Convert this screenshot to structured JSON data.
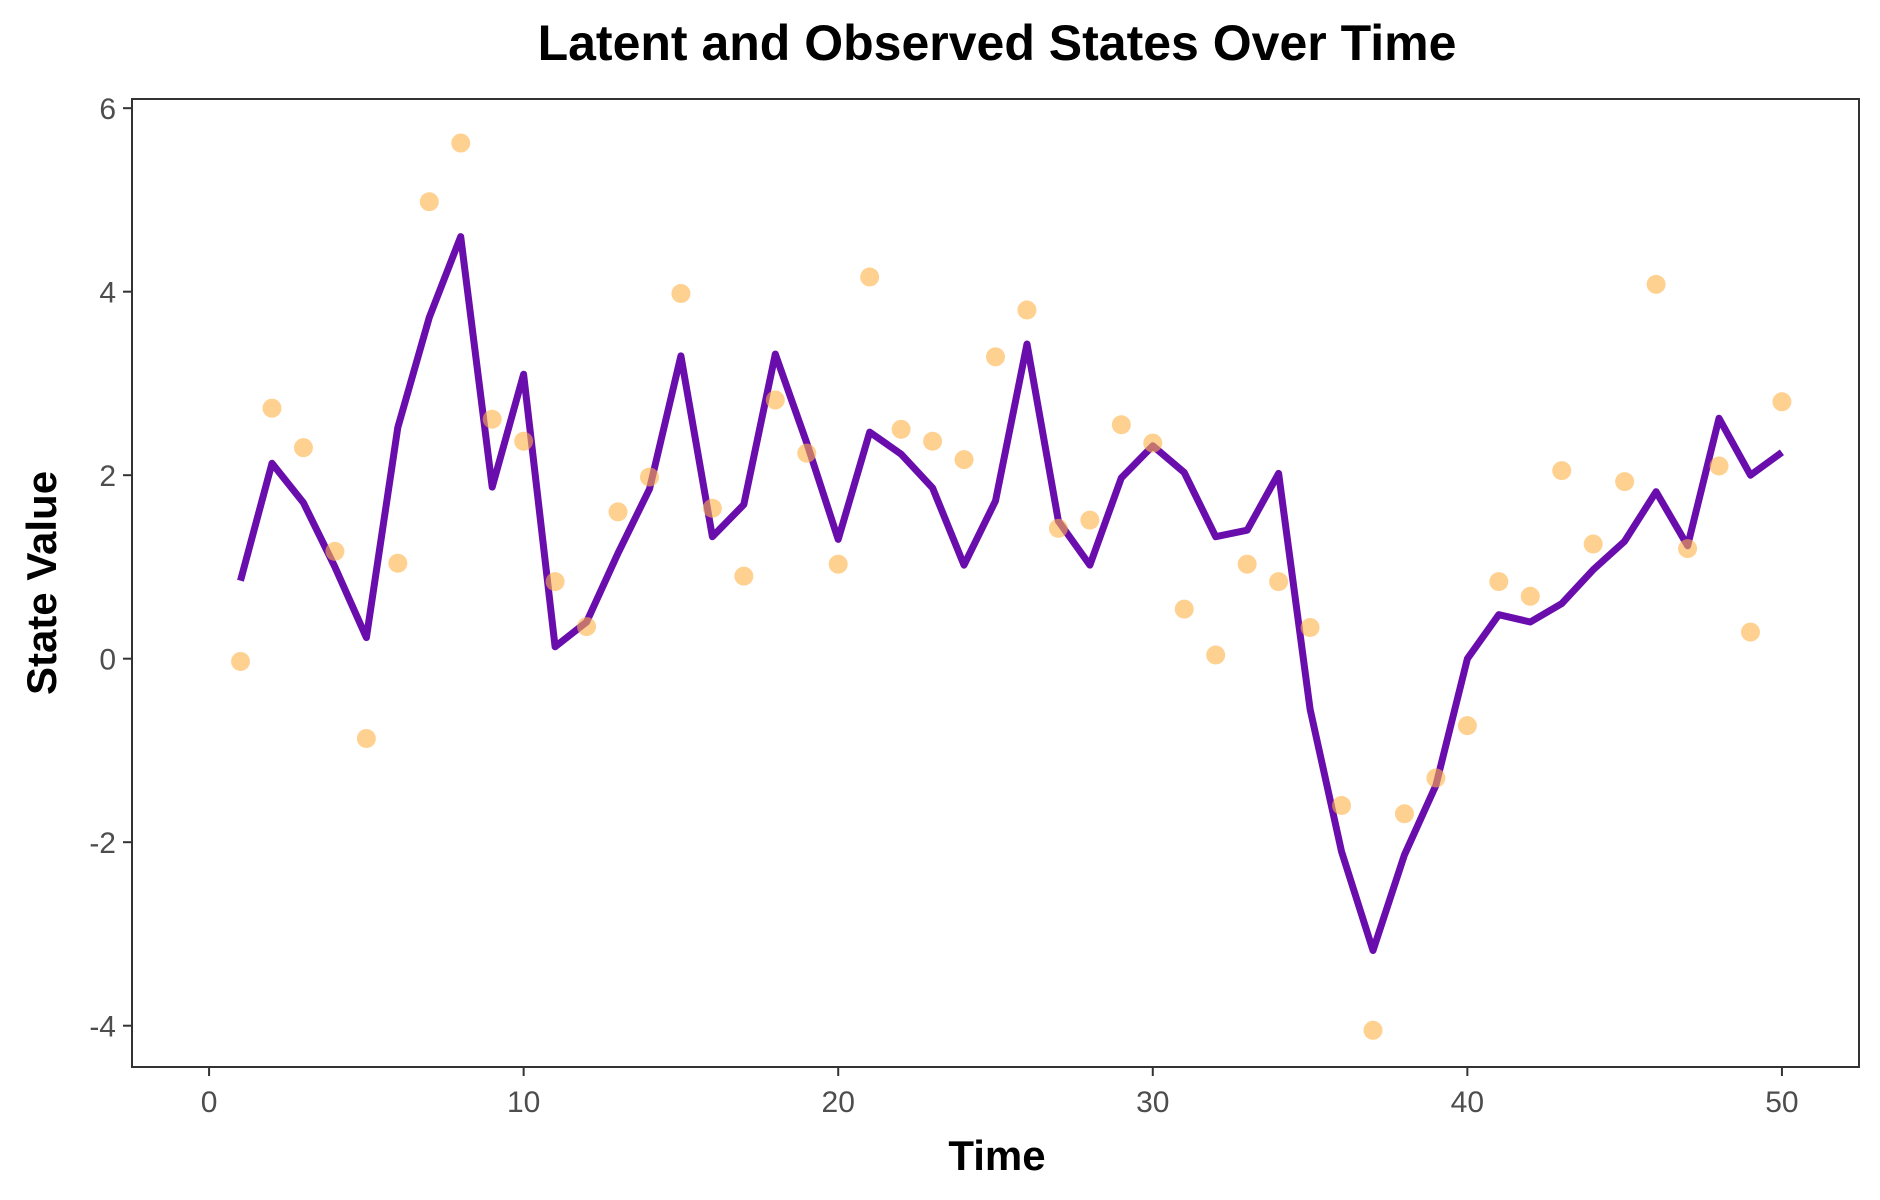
{
  "chart_data": {
    "type": "line",
    "title": "Latent and Observed States Over Time",
    "xlabel": "Time",
    "ylabel": "State Value",
    "xlim": [
      -2.45,
      52.45
    ],
    "ylim": [
      -4.45,
      6.1
    ],
    "xticks": [
      0,
      10,
      20,
      30,
      40,
      50
    ],
    "yticks": [
      -4,
      -2,
      0,
      2,
      4,
      6
    ],
    "grid": false,
    "legend": "none",
    "colors": {
      "latent": "#6a0dad",
      "observed": "#ffb347"
    },
    "series": [
      {
        "key": "latent",
        "mark": "line",
        "x": [
          1,
          2,
          3,
          4,
          5,
          6,
          7,
          8,
          9,
          10,
          11,
          12,
          13,
          14,
          15,
          16,
          17,
          18,
          19,
          20,
          21,
          22,
          23,
          24,
          25,
          26,
          27,
          28,
          29,
          30,
          31,
          32,
          33,
          34,
          35,
          36,
          37,
          38,
          39,
          40,
          41,
          42,
          43,
          44,
          45,
          46,
          47,
          48,
          49,
          50
        ],
        "values": [
          0.85,
          2.13,
          1.7,
          1.0,
          0.23,
          2.52,
          3.72,
          4.6,
          1.87,
          3.1,
          0.13,
          0.4,
          1.15,
          1.85,
          3.3,
          1.33,
          1.68,
          3.32,
          2.35,
          1.3,
          2.47,
          2.23,
          1.86,
          1.02,
          1.72,
          3.43,
          1.5,
          1.02,
          1.97,
          2.32,
          2.03,
          1.33,
          1.4,
          2.02,
          -0.55,
          -2.1,
          -3.18,
          -2.14,
          -1.38,
          0.0,
          0.48,
          0.4,
          0.6,
          0.97,
          1.28,
          1.82,
          1.23,
          2.62,
          2.0,
          2.25
        ]
      },
      {
        "key": "observed",
        "mark": "points",
        "x": [
          1,
          2,
          3,
          4,
          5,
          6,
          7,
          8,
          9,
          10,
          11,
          12,
          13,
          14,
          15,
          16,
          17,
          18,
          19,
          20,
          21,
          22,
          23,
          24,
          25,
          26,
          27,
          28,
          29,
          30,
          31,
          32,
          33,
          34,
          35,
          36,
          37,
          38,
          39,
          40,
          41,
          42,
          43,
          44,
          45,
          46,
          47,
          48,
          49,
          50
        ],
        "values": [
          -0.03,
          2.73,
          2.3,
          1.17,
          -0.87,
          1.04,
          4.98,
          5.62,
          2.61,
          2.37,
          0.84,
          0.35,
          1.6,
          1.98,
          3.98,
          1.64,
          0.9,
          2.82,
          2.24,
          1.03,
          4.16,
          2.5,
          2.37,
          2.17,
          3.29,
          3.8,
          1.42,
          1.51,
          2.55,
          2.35,
          0.54,
          0.04,
          1.03,
          0.84,
          0.34,
          -1.6,
          -4.05,
          -1.69,
          -1.3,
          -0.73,
          0.84,
          0.68,
          2.05,
          1.25,
          1.93,
          4.08,
          1.2,
          2.1,
          0.29,
          2.8
        ]
      }
    ]
  }
}
